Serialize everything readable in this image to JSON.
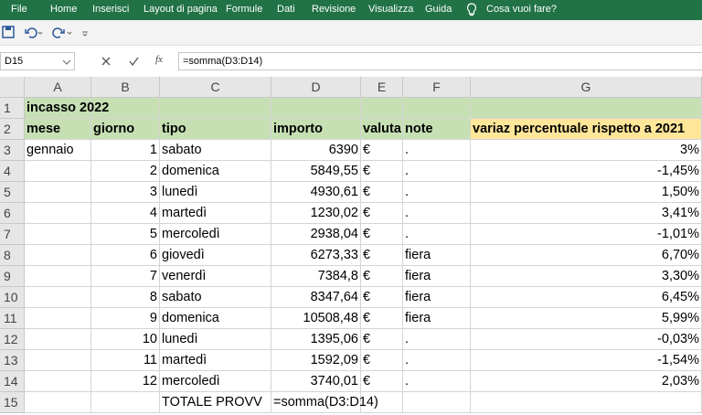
{
  "ribbon": {
    "tabs": [
      "File",
      "Home",
      "Inserisci",
      "Layout di pagina",
      "Formule",
      "Dati",
      "Revisione",
      "Visualizza",
      "Guida"
    ],
    "search": "Cosa vuoi fare?"
  },
  "formula_bar": {
    "name_box": "D15",
    "fx_label": "fx",
    "formula": "=somma(D3:D14)"
  },
  "sheet": {
    "columns": [
      "A",
      "B",
      "C",
      "D",
      "E",
      "F",
      "G"
    ],
    "row_headers": [
      1,
      2,
      3,
      4,
      5,
      6,
      7,
      8,
      9,
      10,
      11,
      12,
      13,
      14,
      15
    ],
    "rows": [
      {
        "A": "incasso 2022"
      },
      {
        "A": "mese",
        "B": "giorno",
        "C": "tipo",
        "D": "importo",
        "E": "valuta",
        "F": "note",
        "G": "variaz percentuale rispetto a 2021"
      },
      {
        "A": "gennaio",
        "B": "1",
        "C": "sabato",
        "D": "6390",
        "E": "€",
        "F": ".",
        "G": "3%"
      },
      {
        "B": "2",
        "C": "domenica",
        "D": "5849,55",
        "E": "€",
        "F": ".",
        "G": "-1,45%"
      },
      {
        "B": "3",
        "C": "lunedì",
        "D": "4930,61",
        "E": "€",
        "F": ".",
        "G": "1,50%"
      },
      {
        "B": "4",
        "C": "martedì",
        "D": "1230,02",
        "E": "€",
        "F": ".",
        "G": "3,41%"
      },
      {
        "B": "5",
        "C": "mercoledì",
        "D": "2938,04",
        "E": "€",
        "F": ".",
        "G": "-1,01%"
      },
      {
        "B": "6",
        "C": "giovedì",
        "D": "6273,33",
        "E": "€",
        "F": "fiera",
        "G": "6,70%"
      },
      {
        "B": "7",
        "C": "venerdì",
        "D": "7384,8",
        "E": "€",
        "F": "fiera",
        "G": "3,30%"
      },
      {
        "B": "8",
        "C": "sabato",
        "D": "8347,64",
        "E": "€",
        "F": "fiera",
        "G": "6,45%"
      },
      {
        "B": "9",
        "C": "domenica",
        "D": "10508,48",
        "E": "€",
        "F": "fiera",
        "G": "5,99%"
      },
      {
        "B": "10",
        "C": "lunedì",
        "D": "1395,06",
        "E": "€",
        "F": ".",
        "G": "-0,03%"
      },
      {
        "B": "11",
        "C": "martedì",
        "D": "1592,09",
        "E": "€",
        "F": ".",
        "G": "-1,54%"
      },
      {
        "B": "12",
        "C": "mercoledì",
        "D": "3740,01",
        "E": "€",
        "F": ".",
        "G": "2,03%"
      },
      {
        "C": "TOTALE PROVV",
        "D": "=somma(D3:D14)"
      }
    ]
  }
}
